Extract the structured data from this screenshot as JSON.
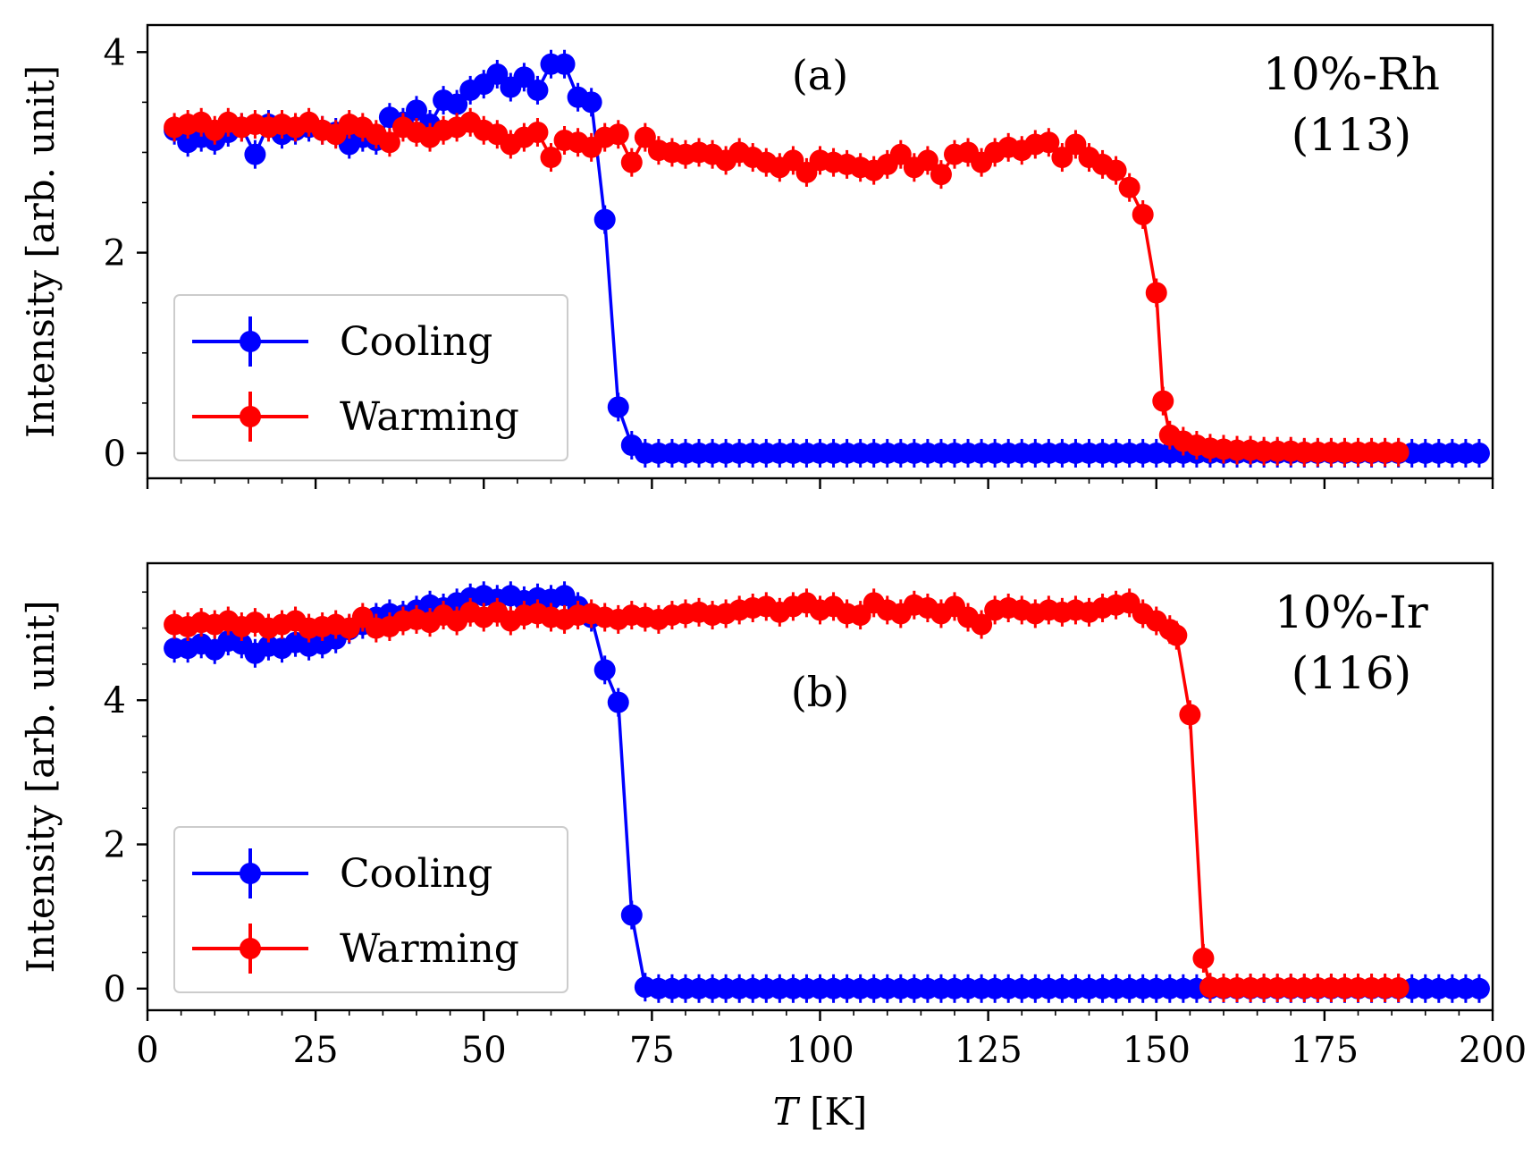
{
  "chart_data": [
    {
      "type": "line",
      "panel_label": "(a)",
      "annotation": [
        "10%-Rh",
        "(113)"
      ],
      "xlabel": "",
      "ylabel": "Intensity [arb. unit]",
      "xlim": [
        0,
        200
      ],
      "ylim": [
        -0.25,
        4.27
      ],
      "xticks": [
        0,
        25,
        50,
        75,
        100,
        125,
        150,
        175,
        200
      ],
      "show_xticklabels": false,
      "yticks": [
        0,
        2,
        4
      ],
      "ytick_labels": [
        "0",
        "2",
        "4"
      ],
      "legend": {
        "placement": "lower-left",
        "entries": [
          "Cooling",
          "Warming"
        ]
      },
      "series": [
        {
          "name": "Cooling",
          "color": "#0000ff",
          "x": [
            4,
            6,
            8,
            10,
            12,
            14,
            16,
            18,
            20,
            22,
            24,
            26,
            28,
            30,
            32,
            34,
            36,
            38,
            40,
            42,
            44,
            46,
            48,
            50,
            52,
            54,
            56,
            58,
            60,
            62,
            64,
            66,
            68,
            70,
            72,
            74,
            76,
            78,
            80,
            82,
            84,
            86,
            88,
            90,
            92,
            94,
            96,
            98,
            100,
            102,
            104,
            106,
            108,
            110,
            112,
            114,
            116,
            118,
            120,
            122,
            124,
            126,
            128,
            130,
            132,
            134,
            136,
            138,
            140,
            142,
            144,
            146,
            148,
            150,
            152,
            154,
            156,
            158,
            160,
            162,
            164,
            166,
            168,
            170,
            172,
            174,
            176,
            178,
            180,
            182,
            184,
            186,
            188,
            190,
            192,
            194,
            196,
            198
          ],
          "y": [
            3.22,
            3.1,
            3.15,
            3.12,
            3.2,
            3.25,
            2.98,
            3.28,
            3.18,
            3.22,
            3.25,
            3.22,
            3.2,
            3.08,
            3.15,
            3.12,
            3.35,
            3.3,
            3.42,
            3.28,
            3.52,
            3.48,
            3.62,
            3.68,
            3.78,
            3.65,
            3.75,
            3.62,
            3.88,
            3.88,
            3.55,
            3.5,
            2.33,
            0.46,
            0.08,
            0.0,
            0.0,
            0.0,
            0.0,
            0.0,
            0.0,
            0.0,
            0.0,
            0.0,
            0.0,
            0.0,
            0.0,
            0.0,
            0.0,
            0.0,
            0.0,
            0.0,
            0.0,
            0.0,
            0.0,
            0.0,
            0.0,
            0.0,
            0.0,
            0.0,
            0.0,
            0.0,
            0.0,
            0.0,
            0.0,
            0.0,
            0.0,
            0.0,
            0.0,
            0.0,
            0.0,
            0.0,
            0.0,
            0.0,
            0.0,
            0.0,
            0.0,
            0.0,
            0.0,
            0.0,
            0.0,
            0.0,
            0.0,
            0.0,
            0.0,
            0.0,
            0.0,
            0.0,
            0.0,
            0.0,
            0.0,
            0.0,
            0.0,
            0.0,
            0.0,
            0.0,
            0.0,
            0.0
          ]
        },
        {
          "name": "Warming",
          "color": "#ff0000",
          "x": [
            4,
            6,
            8,
            10,
            12,
            14,
            16,
            18,
            20,
            22,
            24,
            26,
            28,
            30,
            32,
            34,
            36,
            38,
            40,
            42,
            44,
            46,
            48,
            50,
            52,
            54,
            56,
            58,
            60,
            62,
            64,
            66,
            68,
            70,
            72,
            74,
            76,
            78,
            80,
            82,
            84,
            86,
            88,
            90,
            92,
            94,
            96,
            98,
            100,
            102,
            104,
            106,
            108,
            110,
            112,
            114,
            116,
            118,
            120,
            122,
            124,
            126,
            128,
            130,
            132,
            134,
            136,
            138,
            140,
            142,
            144,
            146,
            148,
            150,
            151,
            152,
            154,
            156,
            158,
            160,
            162,
            164,
            166,
            168,
            170,
            172,
            174,
            176,
            178,
            180,
            182,
            184,
            186
          ],
          "y": [
            3.25,
            3.28,
            3.3,
            3.22,
            3.3,
            3.25,
            3.28,
            3.25,
            3.28,
            3.25,
            3.3,
            3.22,
            3.18,
            3.28,
            3.25,
            3.18,
            3.1,
            3.25,
            3.2,
            3.15,
            3.22,
            3.25,
            3.3,
            3.22,
            3.18,
            3.08,
            3.15,
            3.2,
            2.95,
            3.12,
            3.1,
            3.05,
            3.15,
            3.18,
            2.9,
            3.15,
            3.02,
            3.0,
            2.98,
            3.0,
            2.98,
            2.92,
            3.0,
            2.95,
            2.9,
            2.85,
            2.92,
            2.8,
            2.92,
            2.9,
            2.88,
            2.85,
            2.82,
            2.88,
            2.98,
            2.85,
            2.92,
            2.78,
            2.98,
            3.0,
            2.9,
            3.0,
            3.05,
            3.02,
            3.08,
            3.1,
            2.95,
            3.08,
            2.95,
            2.88,
            2.82,
            2.65,
            2.38,
            1.6,
            0.52,
            0.18,
            0.12,
            0.08,
            0.05,
            0.04,
            0.03,
            0.03,
            0.02,
            0.02,
            0.02,
            0.01,
            0.01,
            0.01,
            0.01,
            0.01,
            0.01,
            0.01,
            0.01
          ]
        }
      ]
    },
    {
      "type": "line",
      "panel_label": "(b)",
      "annotation": [
        "10%-Ir",
        "(116)"
      ],
      "xlabel": "T [K]",
      "ylabel": "Intensity [arb. unit]",
      "xlim": [
        0,
        200
      ],
      "ylim": [
        -0.3,
        5.9
      ],
      "xticks": [
        0,
        25,
        50,
        75,
        100,
        125,
        150,
        175,
        200
      ],
      "xtick_labels": [
        "0",
        "25",
        "50",
        "75",
        "100",
        "125",
        "150",
        "175",
        "200"
      ],
      "show_xticklabels": true,
      "yticks": [
        0,
        2,
        4
      ],
      "ytick_labels": [
        "0",
        "2",
        "4"
      ],
      "legend": {
        "placement": "lower-left",
        "entries": [
          "Cooling",
          "Warming"
        ]
      },
      "series": [
        {
          "name": "Cooling",
          "color": "#0000ff",
          "x": [
            4,
            6,
            8,
            10,
            12,
            14,
            16,
            18,
            20,
            22,
            24,
            26,
            28,
            30,
            32,
            34,
            36,
            38,
            40,
            42,
            44,
            46,
            48,
            50,
            52,
            54,
            56,
            58,
            60,
            62,
            64,
            66,
            68,
            70,
            72,
            74,
            76,
            78,
            80,
            82,
            84,
            86,
            88,
            90,
            92,
            94,
            96,
            98,
            100,
            102,
            104,
            106,
            108,
            110,
            112,
            114,
            116,
            118,
            120,
            122,
            124,
            126,
            128,
            130,
            132,
            134,
            136,
            138,
            140,
            142,
            144,
            146,
            148,
            150,
            152,
            154,
            156,
            158,
            160,
            162,
            164,
            166,
            168,
            170,
            172,
            174,
            176,
            178,
            180,
            182,
            184,
            186,
            188,
            190,
            192,
            194,
            196,
            198
          ],
          "y": [
            4.72,
            4.72,
            4.78,
            4.7,
            4.82,
            4.78,
            4.65,
            4.75,
            4.72,
            4.8,
            4.75,
            4.78,
            4.85,
            4.98,
            5.05,
            5.15,
            5.2,
            5.18,
            5.25,
            5.32,
            5.28,
            5.35,
            5.42,
            5.45,
            5.4,
            5.45,
            5.38,
            5.42,
            5.4,
            5.45,
            5.3,
            5.15,
            4.42,
            3.97,
            1.02,
            0.02,
            0.0,
            0.0,
            0.0,
            0.0,
            0.0,
            0.0,
            0.0,
            0.0,
            0.0,
            0.0,
            0.0,
            0.0,
            0.0,
            0.0,
            0.0,
            0.0,
            0.0,
            0.0,
            0.0,
            0.0,
            0.0,
            0.0,
            0.0,
            0.0,
            0.0,
            0.0,
            0.0,
            0.0,
            0.0,
            0.0,
            0.0,
            0.0,
            0.0,
            0.0,
            0.0,
            0.0,
            0.0,
            0.0,
            0.0,
            0.0,
            0.0,
            0.0,
            0.0,
            0.0,
            0.0,
            0.0,
            0.0,
            0.0,
            0.0,
            0.0,
            0.0,
            0.0,
            0.0,
            0.0,
            0.0,
            0.0,
            0.0,
            0.0,
            0.0,
            0.0,
            0.0,
            0.0
          ]
        },
        {
          "name": "Warming",
          "color": "#ff0000",
          "x": [
            4,
            6,
            8,
            10,
            12,
            14,
            16,
            18,
            20,
            22,
            24,
            26,
            28,
            30,
            32,
            34,
            36,
            38,
            40,
            42,
            44,
            46,
            48,
            50,
            52,
            54,
            56,
            58,
            60,
            62,
            64,
            66,
            68,
            70,
            72,
            74,
            76,
            78,
            80,
            82,
            84,
            86,
            88,
            90,
            92,
            94,
            96,
            98,
            100,
            102,
            104,
            106,
            108,
            110,
            112,
            114,
            116,
            118,
            120,
            122,
            124,
            126,
            128,
            130,
            132,
            134,
            136,
            138,
            140,
            142,
            144,
            146,
            148,
            150,
            152,
            153,
            155,
            157,
            158,
            160,
            162,
            164,
            166,
            168,
            170,
            172,
            174,
            176,
            178,
            180,
            182,
            184,
            186
          ],
          "y": [
            5.05,
            5.02,
            5.08,
            5.05,
            5.1,
            5.02,
            5.08,
            5.0,
            5.05,
            5.1,
            5.0,
            5.02,
            5.05,
            5.0,
            5.15,
            5.0,
            5.02,
            5.1,
            5.12,
            5.08,
            5.18,
            5.1,
            5.22,
            5.15,
            5.22,
            5.1,
            5.18,
            5.2,
            5.15,
            5.12,
            5.18,
            5.2,
            5.15,
            5.12,
            5.18,
            5.15,
            5.12,
            5.18,
            5.2,
            5.22,
            5.18,
            5.2,
            5.25,
            5.28,
            5.3,
            5.22,
            5.3,
            5.35,
            5.25,
            5.3,
            5.2,
            5.18,
            5.35,
            5.25,
            5.2,
            5.32,
            5.28,
            5.2,
            5.3,
            5.15,
            5.05,
            5.25,
            5.28,
            5.25,
            5.2,
            5.25,
            5.22,
            5.25,
            5.22,
            5.28,
            5.32,
            5.35,
            5.2,
            5.1,
            4.98,
            4.9,
            3.8,
            0.42,
            0.02,
            0.01,
            0.01,
            0.01,
            0.01,
            0.01,
            0.01,
            0.01,
            0.01,
            0.01,
            0.01,
            0.01,
            0.01,
            0.01,
            0.01
          ]
        }
      ]
    }
  ]
}
